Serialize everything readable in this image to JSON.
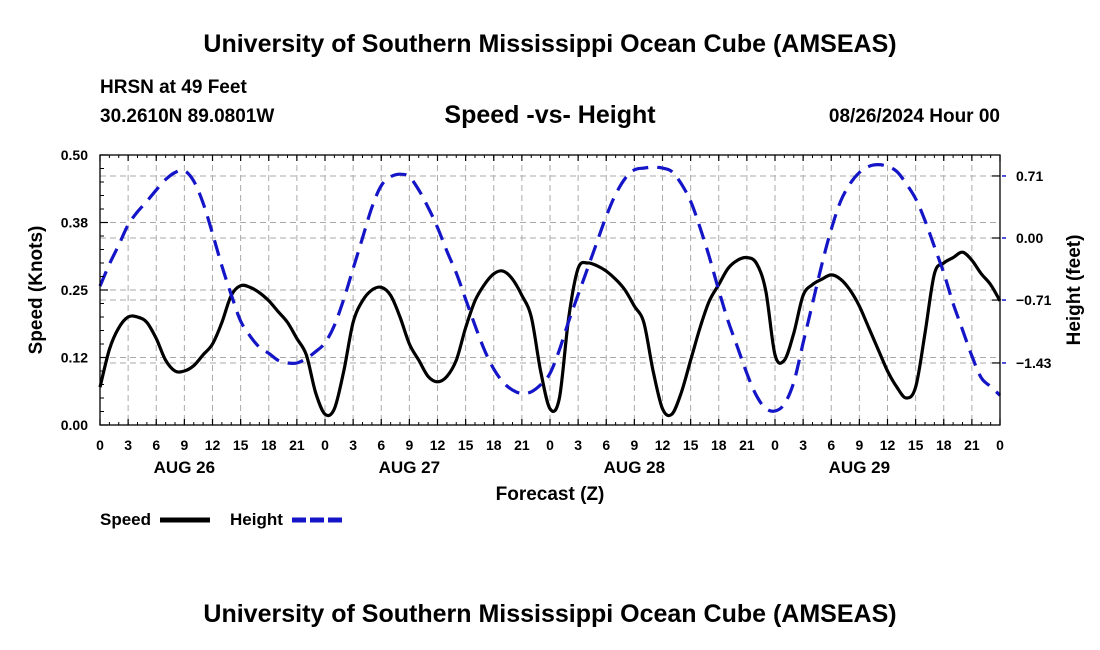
{
  "header": {
    "title": "University of Southern Mississippi Ocean Cube (AMSEAS)",
    "station": "HRSN at 49 Feet",
    "coords": "30.2610N  89.0801W",
    "chart_title": "Speed -vs- Height",
    "date": "08/26/2024 Hour 00"
  },
  "footer": {
    "title": "University of Southern Mississippi Ocean Cube (AMSEAS)"
  },
  "colors": {
    "speed": "#000000",
    "height": "#1515c8",
    "grid": "#aaaaaa"
  },
  "chart_data": {
    "type": "line",
    "title": "Speed -vs- Height",
    "xlabel": "Forecast (Z)",
    "ylabel_left": "Speed (Knots)",
    "ylabel_right": "Height (feet)",
    "x_hours": [
      0,
      3,
      6,
      9,
      12,
      15,
      18,
      21,
      24,
      27,
      30,
      33,
      36,
      39,
      42,
      45,
      48,
      51,
      54,
      57,
      60,
      63,
      66,
      69,
      72,
      75,
      78,
      81,
      84,
      87,
      90,
      93,
      96
    ],
    "x_tick_labels": [
      "0",
      "3",
      "6",
      "9",
      "12",
      "15",
      "18",
      "21",
      "0",
      "3",
      "6",
      "9",
      "12",
      "15",
      "18",
      "21",
      "0",
      "3",
      "6",
      "9",
      "12",
      "15",
      "18",
      "21",
      "0",
      "3",
      "6",
      "9",
      "12",
      "15",
      "18",
      "21",
      "0"
    ],
    "day_labels": [
      {
        "hour": 9,
        "label": "AUG 26"
      },
      {
        "hour": 33,
        "label": "AUG 27"
      },
      {
        "hour": 57,
        "label": "AUG 28"
      },
      {
        "hour": 81,
        "label": "AUG 29"
      }
    ],
    "ylim_left": [
      0,
      0.5
    ],
    "yticks_left": [
      "0.00",
      "0.12",
      "0.25",
      "0.38",
      "0.50"
    ],
    "ylim_right": [
      -2.14,
      0.95
    ],
    "yticks_right": [
      "0.71",
      "0.00",
      "−0.71",
      "−1.43"
    ],
    "yticks_right_values": [
      0.71,
      0.0,
      -0.71,
      -1.43
    ],
    "grid": true,
    "legend": "bottom-left",
    "series": [
      {
        "name": "Speed",
        "axis": "left",
        "style": "solid",
        "points": [
          [
            0,
            0.07
          ],
          [
            1,
            0.14
          ],
          [
            2,
            0.18
          ],
          [
            3,
            0.2
          ],
          [
            4,
            0.2
          ],
          [
            5,
            0.19
          ],
          [
            6,
            0.16
          ],
          [
            7,
            0.12
          ],
          [
            8,
            0.1
          ],
          [
            9,
            0.1
          ],
          [
            10,
            0.11
          ],
          [
            11,
            0.13
          ],
          [
            12,
            0.15
          ],
          [
            13,
            0.19
          ],
          [
            14,
            0.24
          ],
          [
            15,
            0.258
          ],
          [
            16,
            0.255
          ],
          [
            17,
            0.245
          ],
          [
            18,
            0.23
          ],
          [
            19,
            0.21
          ],
          [
            20,
            0.19
          ],
          [
            21,
            0.16
          ],
          [
            22,
            0.13
          ],
          [
            23,
            0.06
          ],
          [
            24,
            0.02
          ],
          [
            25,
            0.03
          ],
          [
            26,
            0.1
          ],
          [
            27,
            0.19
          ],
          [
            28,
            0.23
          ],
          [
            29,
            0.25
          ],
          [
            30,
            0.255
          ],
          [
            31,
            0.24
          ],
          [
            32,
            0.2
          ],
          [
            33,
            0.15
          ],
          [
            34,
            0.12
          ],
          [
            35,
            0.09
          ],
          [
            36,
            0.08
          ],
          [
            37,
            0.09
          ],
          [
            38,
            0.12
          ],
          [
            39,
            0.18
          ],
          [
            40,
            0.23
          ],
          [
            41,
            0.26
          ],
          [
            42,
            0.28
          ],
          [
            43,
            0.285
          ],
          [
            44,
            0.27
          ],
          [
            45,
            0.24
          ],
          [
            46,
            0.2
          ],
          [
            47,
            0.1
          ],
          [
            48,
            0.03
          ],
          [
            49,
            0.05
          ],
          [
            50,
            0.2
          ],
          [
            51,
            0.29
          ],
          [
            52,
            0.3
          ],
          [
            53,
            0.295
          ],
          [
            54,
            0.285
          ],
          [
            55,
            0.27
          ],
          [
            56,
            0.25
          ],
          [
            57,
            0.22
          ],
          [
            58,
            0.19
          ],
          [
            59,
            0.1
          ],
          [
            60,
            0.03
          ],
          [
            61,
            0.02
          ],
          [
            62,
            0.06
          ],
          [
            63,
            0.12
          ],
          [
            64,
            0.18
          ],
          [
            65,
            0.23
          ],
          [
            66,
            0.26
          ],
          [
            67,
            0.29
          ],
          [
            68,
            0.305
          ],
          [
            69,
            0.31
          ],
          [
            70,
            0.3
          ],
          [
            71,
            0.25
          ],
          [
            72,
            0.13
          ],
          [
            73,
            0.12
          ],
          [
            74,
            0.17
          ],
          [
            75,
            0.24
          ],
          [
            76,
            0.26
          ],
          [
            77,
            0.27
          ],
          [
            78,
            0.278
          ],
          [
            79,
            0.27
          ],
          [
            80,
            0.25
          ],
          [
            81,
            0.22
          ],
          [
            82,
            0.18
          ],
          [
            83,
            0.14
          ],
          [
            84,
            0.1
          ],
          [
            85,
            0.07
          ],
          [
            86,
            0.05
          ],
          [
            87,
            0.07
          ],
          [
            88,
            0.17
          ],
          [
            89,
            0.28
          ],
          [
            90,
            0.3
          ],
          [
            91,
            0.31
          ],
          [
            92,
            0.32
          ],
          [
            93,
            0.305
          ],
          [
            94,
            0.28
          ],
          [
            95,
            0.26
          ],
          [
            96,
            0.23
          ]
        ]
      },
      {
        "name": "Height",
        "axis": "right",
        "style": "dashed",
        "points": [
          [
            0,
            -0.55
          ],
          [
            1,
            -0.3
          ],
          [
            2,
            -0.08
          ],
          [
            3,
            0.15
          ],
          [
            4,
            0.3
          ],
          [
            5,
            0.42
          ],
          [
            6,
            0.55
          ],
          [
            7,
            0.67
          ],
          [
            8,
            0.75
          ],
          [
            9,
            0.77
          ],
          [
            10,
            0.65
          ],
          [
            11,
            0.4
          ],
          [
            12,
            0.05
          ],
          [
            13,
            -0.32
          ],
          [
            14,
            -0.65
          ],
          [
            15,
            -0.95
          ],
          [
            16,
            -1.12
          ],
          [
            17,
            -1.25
          ],
          [
            18,
            -1.32
          ],
          [
            19,
            -1.4
          ],
          [
            20,
            -1.43
          ],
          [
            21,
            -1.43
          ],
          [
            22,
            -1.38
          ],
          [
            23,
            -1.3
          ],
          [
            24,
            -1.2
          ],
          [
            25,
            -1.0
          ],
          [
            26,
            -0.7
          ],
          [
            27,
            -0.35
          ],
          [
            28,
            0.0
          ],
          [
            29,
            0.35
          ],
          [
            30,
            0.6
          ],
          [
            31,
            0.7
          ],
          [
            32,
            0.73
          ],
          [
            33,
            0.7
          ],
          [
            34,
            0.55
          ],
          [
            35,
            0.35
          ],
          [
            36,
            0.12
          ],
          [
            37,
            -0.15
          ],
          [
            38,
            -0.4
          ],
          [
            39,
            -0.7
          ],
          [
            40,
            -1.0
          ],
          [
            41,
            -1.28
          ],
          [
            42,
            -1.5
          ],
          [
            43,
            -1.65
          ],
          [
            44,
            -1.74
          ],
          [
            45,
            -1.78
          ],
          [
            46,
            -1.76
          ],
          [
            47,
            -1.68
          ],
          [
            48,
            -1.55
          ],
          [
            49,
            -1.28
          ],
          [
            50,
            -0.95
          ],
          [
            51,
            -0.65
          ],
          [
            52,
            -0.35
          ],
          [
            53,
            -0.05
          ],
          [
            54,
            0.25
          ],
          [
            55,
            0.5
          ],
          [
            56,
            0.68
          ],
          [
            57,
            0.78
          ],
          [
            58,
            0.8
          ],
          [
            59,
            0.81
          ],
          [
            60,
            0.8
          ],
          [
            61,
            0.76
          ],
          [
            62,
            0.62
          ],
          [
            63,
            0.42
          ],
          [
            64,
            0.12
          ],
          [
            65,
            -0.22
          ],
          [
            66,
            -0.6
          ],
          [
            67,
            -0.95
          ],
          [
            68,
            -1.25
          ],
          [
            69,
            -1.55
          ],
          [
            70,
            -1.8
          ],
          [
            71,
            -1.95
          ],
          [
            72,
            -1.98
          ],
          [
            73,
            -1.9
          ],
          [
            74,
            -1.65
          ],
          [
            75,
            -1.2
          ],
          [
            76,
            -0.75
          ],
          [
            77,
            -0.3
          ],
          [
            78,
            0.1
          ],
          [
            79,
            0.42
          ],
          [
            80,
            0.62
          ],
          [
            81,
            0.75
          ],
          [
            82,
            0.82
          ],
          [
            83,
            0.84
          ],
          [
            84,
            0.82
          ],
          [
            85,
            0.76
          ],
          [
            86,
            0.62
          ],
          [
            87,
            0.45
          ],
          [
            88,
            0.2
          ],
          [
            89,
            -0.1
          ],
          [
            90,
            -0.4
          ],
          [
            91,
            -0.75
          ],
          [
            92,
            -1.05
          ],
          [
            93,
            -1.35
          ],
          [
            94,
            -1.6
          ],
          [
            95,
            -1.7
          ],
          [
            96,
            -1.8
          ]
        ]
      }
    ],
    "legend_entries": [
      {
        "label": "Speed",
        "series": "Speed"
      },
      {
        "label": "Height",
        "series": "Height"
      }
    ]
  }
}
